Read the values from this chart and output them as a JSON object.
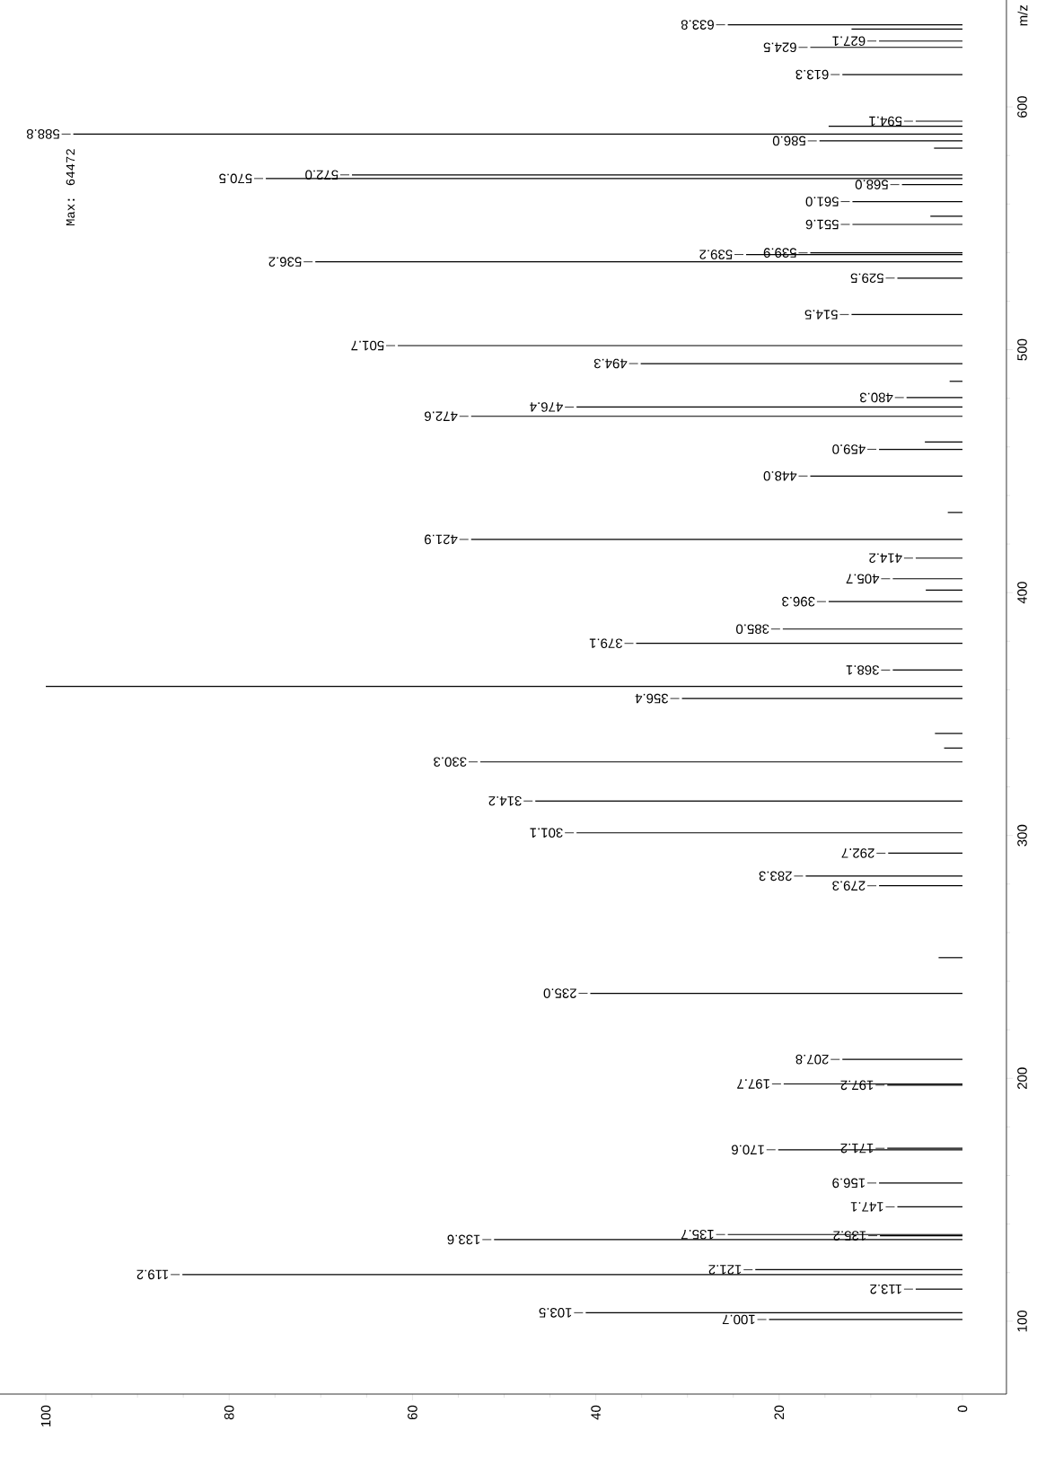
{
  "chart_data": {
    "type": "bar",
    "orientation": "horizontal",
    "ylabel": "m/z",
    "color": "#000000",
    "xlim": [
      105,
      -4.8
    ],
    "ylim": [
      70,
      644
    ],
    "xticks": [
      0,
      20,
      40,
      60,
      80,
      100
    ],
    "yticks": [
      100,
      200,
      300,
      400,
      500,
      600
    ],
    "x": [
      100.7,
      103.5,
      113.2,
      119.2,
      121.2,
      133.6,
      135.2,
      135.7,
      147.1,
      156.9,
      170.6,
      171.2,
      197.2,
      197.7,
      207.8,
      235.0,
      249.7,
      279.3,
      283.3,
      292.7,
      301.1,
      314.2,
      330.3,
      336,
      342,
      356.4,
      361.4,
      368.1,
      379.1,
      385.0,
      396.3,
      401,
      405.7,
      414.2,
      421.9,
      433,
      448.0,
      459.0,
      462,
      472.6,
      476.4,
      480.3,
      487,
      494.3,
      501.7,
      514.5,
      529.5,
      536.2,
      539.2,
      539.9,
      551.6,
      555,
      561.0,
      568.0,
      570.5,
      572.0,
      583,
      586.0,
      588.8,
      592,
      594.1,
      613.3,
      624.5,
      627.1,
      632,
      633.8
    ],
    "values": [
      21.1,
      41.1,
      5.1,
      85.1,
      22.6,
      51.1,
      9.0,
      25.6,
      7.1,
      9.1,
      20.1,
      8.2,
      8.2,
      19.5,
      13.1,
      40.6,
      2.6,
      9.1,
      17.1,
      8.1,
      42.1,
      46.6,
      52.6,
      2.0,
      3.0,
      30.6,
      100,
      7.6,
      35.6,
      19.6,
      14.6,
      4.0,
      7.6,
      5.1,
      53.6,
      1.6,
      16.6,
      9.1,
      4.1,
      53.6,
      42.1,
      6.1,
      1.4,
      35.1,
      61.6,
      12.1,
      7.1,
      70.6,
      23.6,
      16.6,
      12.0,
      3.5,
      12.0,
      6.6,
      76.0,
      66.6,
      3.1,
      15.6,
      97,
      14.6,
      5.1,
      13.1,
      16.6,
      9.1,
      12.1,
      25.6
    ],
    "annotations": [
      "Max: 64472",
      {
        "text": "100.7",
        "x": 21.1,
        "y": 100.7
      },
      {
        "text": "103.5",
        "x": 41.1,
        "y": 103.5
      },
      {
        "text": "113.2",
        "x": 5.1,
        "y": 113.2
      },
      {
        "text": "119.2",
        "x": 85.1,
        "y": 119.2
      },
      {
        "text": "121.2",
        "x": 22.6,
        "y": 121.2
      },
      {
        "text": "133.6",
        "x": 51.1,
        "y": 133.6
      },
      {
        "text": "135.2",
        "x": 9.0,
        "y": 135.2
      },
      {
        "text": "135.7",
        "x": 25.6,
        "y": 135.7
      },
      {
        "text": "147.1",
        "x": 7.1,
        "y": 147.1
      },
      {
        "text": "156.9",
        "x": 9.1,
        "y": 156.9
      },
      {
        "text": "170.6",
        "x": 20.1,
        "y": 170.6
      },
      {
        "text": "171.2",
        "x": 8.2,
        "y": 171.2
      },
      {
        "text": "197.2",
        "x": 8.2,
        "y": 197.2
      },
      {
        "text": "197.7",
        "x": 19.5,
        "y": 197.7
      },
      {
        "text": "207.8",
        "x": 13.1,
        "y": 207.8
      },
      {
        "text": "235.0",
        "x": 40.6,
        "y": 235.0
      },
      {
        "text": "279.3",
        "x": 9.1,
        "y": 279.3
      },
      {
        "text": "283.3",
        "x": 17.1,
        "y": 283.3
      },
      {
        "text": "292.7",
        "x": 8.1,
        "y": 292.7
      },
      {
        "text": "301.1",
        "x": 42.1,
        "y": 301.1
      },
      {
        "text": "314.2",
        "x": 46.6,
        "y": 314.2
      },
      {
        "text": "330.3",
        "x": 52.6,
        "y": 330.3
      },
      {
        "text": "356.4",
        "x": 30.6,
        "y": 356.4
      },
      {
        "text": "368.1",
        "x": 7.6,
        "y": 368.1
      },
      {
        "text": "379.1",
        "x": 35.6,
        "y": 379.1
      },
      {
        "text": "385.0",
        "x": 19.6,
        "y": 385.0
      },
      {
        "text": "396.3",
        "x": 14.6,
        "y": 396.3
      },
      {
        "text": "405.7",
        "x": 7.6,
        "y": 405.7
      },
      {
        "text": "414.2",
        "x": 5.1,
        "y": 414.2
      },
      {
        "text": "421.9",
        "x": 53.6,
        "y": 421.9
      },
      {
        "text": "448.0",
        "x": 16.6,
        "y": 448.0
      },
      {
        "text": "459.0",
        "x": 9.1,
        "y": 459.0
      },
      {
        "text": "472.6",
        "x": 53.6,
        "y": 472.6
      },
      {
        "text": "476.4",
        "x": 42.1,
        "y": 476.4
      },
      {
        "text": "480.3",
        "x": 6.1,
        "y": 480.3
      },
      {
        "text": "494.3",
        "x": 35.1,
        "y": 494.3
      },
      {
        "text": "501.7",
        "x": 61.6,
        "y": 501.7
      },
      {
        "text": "514.5",
        "x": 12.1,
        "y": 514.5
      },
      {
        "text": "529.5",
        "x": 7.1,
        "y": 529.5
      },
      {
        "text": "536.2",
        "x": 70.6,
        "y": 536.2
      },
      {
        "text": "539.2",
        "x": 23.6,
        "y": 539.2
      },
      {
        "text": "539.9",
        "x": 16.6,
        "y": 539.9
      },
      {
        "text": "551.6",
        "x": 12.0,
        "y": 551.6
      },
      {
        "text": "561.0",
        "x": 12.0,
        "y": 561.0
      },
      {
        "text": "568.0",
        "x": 6.6,
        "y": 568.0
      },
      {
        "text": "570.5",
        "x": 76.0,
        "y": 570.5
      },
      {
        "text": "572.0",
        "x": 66.6,
        "y": 572.0
      },
      {
        "text": "586.0",
        "x": 15.6,
        "y": 586.0
      },
      {
        "text": "588.8",
        "x": 97,
        "y": 588.8
      },
      {
        "text": "594.1",
        "x": 5.1,
        "y": 594.1
      },
      {
        "text": "613.3",
        "x": 13.1,
        "y": 613.3
      },
      {
        "text": "624.5",
        "x": 16.6,
        "y": 624.5
      },
      {
        "text": "627.1",
        "x": 9.1,
        "y": 627.1
      },
      {
        "text": "633.8",
        "x": 25.6,
        "y": 633.8
      }
    ]
  }
}
